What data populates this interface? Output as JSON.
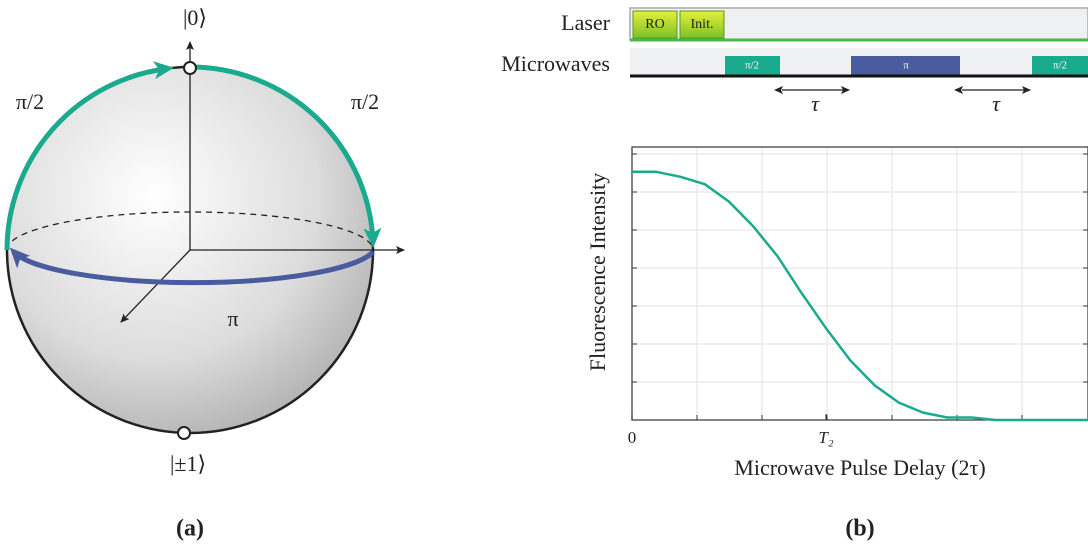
{
  "panel_a": {
    "ket_top": "|0⟩",
    "ket_bottom": "|±1⟩",
    "left_angle": "π/2",
    "right_angle": "π/2",
    "equator_angle": "π",
    "caption": "(a)"
  },
  "panel_b": {
    "rows": [
      "Laser",
      "Microwaves"
    ],
    "laser_boxes": [
      "RO",
      "Init."
    ],
    "pulses": [
      "π/2",
      "π",
      "π/2"
    ],
    "delays": [
      "τ",
      "τ"
    ],
    "caption": "(b)",
    "plot": {
      "type": "line",
      "ylabel": "Fluorescence Intensity",
      "xlabel": "Microwave Pulse Delay (2τ)",
      "x": [
        0,
        0.125,
        0.25,
        0.375,
        0.5,
        0.625,
        0.75,
        0.875,
        1,
        1.125,
        1.25,
        1.375,
        1.5,
        1.625,
        1.75,
        1.875,
        2,
        2.125,
        2.25,
        2.35
      ],
      "values": [
        1,
        1,
        0.98,
        0.95,
        0.88,
        0.78,
        0.66,
        0.51,
        0.37,
        0.24,
        0.14,
        0.07,
        0.03,
        0.01,
        0.01,
        0,
        0,
        0,
        0,
        0
      ],
      "color": "#1aaa8e",
      "xlim": [
        0,
        2.35
      ],
      "ylim": [
        0,
        1.1
      ],
      "xticks": [
        0,
        {
          "value": 1,
          "label": "T₂"
        }
      ],
      "grid": true
    }
  }
}
